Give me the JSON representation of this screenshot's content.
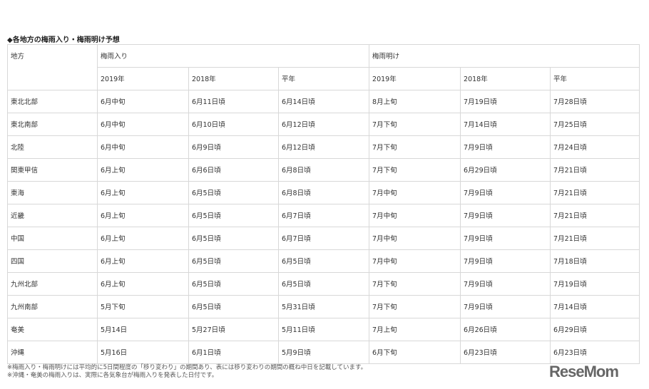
{
  "title": "◆各地方の梅雨入り・梅雨明け予想",
  "headers": {
    "region": "地方",
    "entry": "梅雨入り",
    "exit": "梅雨明け",
    "years": [
      "2019年",
      "2018年",
      "平年",
      "2019年",
      "2018年",
      "平年"
    ]
  },
  "rows": [
    [
      "東北北部",
      "6月中旬",
      "6月11日頃",
      "6月14日頃",
      "8月上旬",
      "7月19日頃",
      "7月28日頃"
    ],
    [
      "東北南部",
      "6月中旬",
      "6月10日頃",
      "6月12日頃",
      "7月下旬",
      "7月14日頃",
      "7月25日頃"
    ],
    [
      "北陸",
      "6月中旬",
      "6月9日頃",
      "6月12日頃",
      "7月下旬",
      "7月9日頃",
      "7月24日頃"
    ],
    [
      "関東甲信",
      "6月上旬",
      "6月6日頃",
      "6月8日頃",
      "7月下旬",
      "6月29日頃",
      "7月21日頃"
    ],
    [
      "東海",
      "6月上旬",
      "6月5日頃",
      "6月8日頃",
      "7月中旬",
      "7月9日頃",
      "7月21日頃"
    ],
    [
      "近畿",
      "6月上旬",
      "6月5日頃",
      "6月7日頃",
      "7月中旬",
      "7月9日頃",
      "7月21日頃"
    ],
    [
      "中国",
      "6月上旬",
      "6月5日頃",
      "6月7日頃",
      "7月中旬",
      "7月9日頃",
      "7月21日頃"
    ],
    [
      "四国",
      "6月上旬",
      "6月5日頃",
      "6月5日頃",
      "7月中旬",
      "7月9日頃",
      "7月18日頃"
    ],
    [
      "九州北部",
      "6月上旬",
      "6月5日頃",
      "6月5日頃",
      "7月下旬",
      "7月9日頃",
      "7月19日頃"
    ],
    [
      "九州南部",
      "5月下旬",
      "6月5日頃",
      "5月31日頃",
      "7月下旬",
      "7月9日頃",
      "7月14日頃"
    ],
    [
      "奄美",
      "5月14日",
      "5月27日頃",
      "5月11日頃",
      "7月上旬",
      "6月26日頃",
      "6月29日頃"
    ],
    [
      "沖縄",
      "5月16日",
      "6月1日頃",
      "5月9日頃",
      "6月下旬",
      "6月23日頃",
      "6月23日頃"
    ]
  ],
  "notes": [
    "※梅雨入り・梅雨明けには平均的に5日間程度の「移り変わり」の期間あり、表には移り変わりの期間の概ね中日を記載しています。",
    "※沖縄・奄美の梅雨入りは、実際に各気象台が梅雨入りを発表した日付です。"
  ],
  "logo": "ReseMom"
}
